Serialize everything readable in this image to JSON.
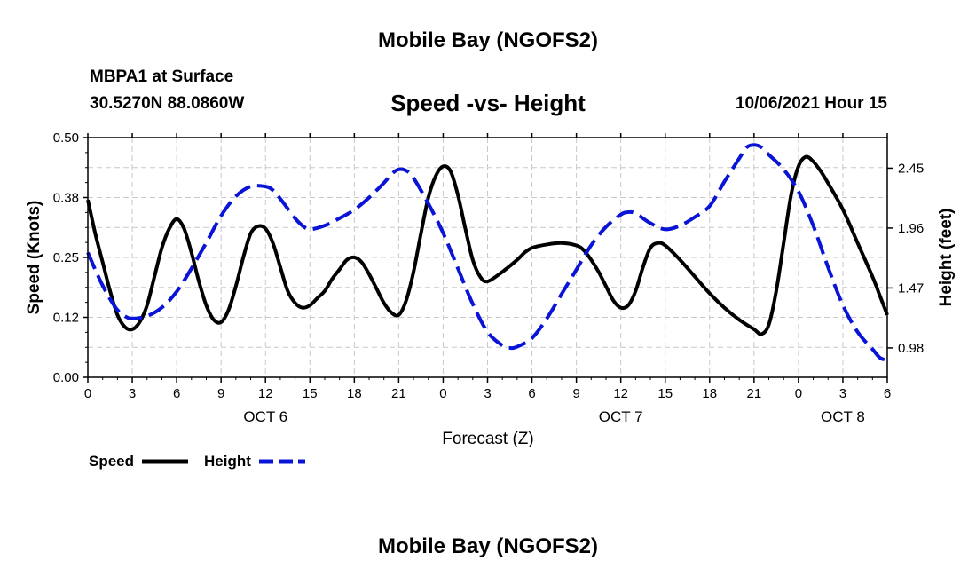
{
  "header": {
    "title": "Mobile Bay (NGOFS2)",
    "station": "MBPA1 at Surface",
    "coords": "30.5270N  88.0860W",
    "subtitle": "Speed -vs- Height",
    "datetime": "10/06/2021 Hour 15"
  },
  "footer": {
    "title": "Mobile Bay (NGOFS2)"
  },
  "legend": {
    "speed_label": "Speed",
    "height_label": "Height"
  },
  "colors": {
    "speed": "#000000",
    "height": "#0a14d6",
    "grid": "#c8c8c8"
  },
  "chart_data": {
    "type": "line",
    "xlabel": "Forecast (Z)",
    "ylabel_left": "Speed (Knots)",
    "ylabel_right": "Height (feet)",
    "x_range_hours": [
      0,
      54
    ],
    "x_ticks": [
      {
        "h": 0,
        "label": "0"
      },
      {
        "h": 3,
        "label": "3"
      },
      {
        "h": 6,
        "label": "6"
      },
      {
        "h": 9,
        "label": "9"
      },
      {
        "h": 12,
        "label": "12"
      },
      {
        "h": 15,
        "label": "15"
      },
      {
        "h": 18,
        "label": "18"
      },
      {
        "h": 21,
        "label": "21"
      },
      {
        "h": 24,
        "label": "0"
      },
      {
        "h": 27,
        "label": "3"
      },
      {
        "h": 30,
        "label": "6"
      },
      {
        "h": 33,
        "label": "9"
      },
      {
        "h": 36,
        "label": "12"
      },
      {
        "h": 39,
        "label": "15"
      },
      {
        "h": 42,
        "label": "18"
      },
      {
        "h": 45,
        "label": "21"
      },
      {
        "h": 48,
        "label": "0"
      },
      {
        "h": 51,
        "label": "3"
      },
      {
        "h": 54,
        "label": "6"
      }
    ],
    "day_labels": [
      {
        "h": 12,
        "label": "OCT 6"
      },
      {
        "h": 36,
        "label": "OCT 7"
      },
      {
        "h": 51,
        "label": "OCT 8"
      }
    ],
    "left_axis": {
      "ylim": [
        0,
        0.5
      ],
      "ticks": [
        0.0,
        0.125,
        0.25,
        0.375,
        0.5
      ],
      "tick_labels": [
        "0.00",
        "0.12",
        "0.25",
        "0.38",
        "0.50"
      ],
      "minor_step": 0.0625
    },
    "right_axis": {
      "ylim": [
        0.74,
        2.7
      ],
      "ticks": [
        0.98,
        1.47,
        1.96,
        2.45
      ],
      "tick_labels": [
        "0.98",
        "1.47",
        "1.96",
        "2.45"
      ]
    },
    "series": [
      {
        "name": "Speed",
        "axis": "left",
        "color": "#000000",
        "dash": "solid",
        "points": [
          [
            0,
            0.37
          ],
          [
            0.5,
            0.3
          ],
          [
            1,
            0.24
          ],
          [
            1.5,
            0.18
          ],
          [
            2,
            0.13
          ],
          [
            2.5,
            0.105
          ],
          [
            3,
            0.1
          ],
          [
            3.5,
            0.115
          ],
          [
            4,
            0.15
          ],
          [
            4.5,
            0.21
          ],
          [
            5,
            0.27
          ],
          [
            5.5,
            0.31
          ],
          [
            6,
            0.33
          ],
          [
            6.5,
            0.31
          ],
          [
            7,
            0.26
          ],
          [
            7.5,
            0.2
          ],
          [
            8,
            0.15
          ],
          [
            8.5,
            0.12
          ],
          [
            9,
            0.115
          ],
          [
            9.5,
            0.14
          ],
          [
            10,
            0.19
          ],
          [
            10.5,
            0.25
          ],
          [
            11,
            0.3
          ],
          [
            11.5,
            0.315
          ],
          [
            12,
            0.31
          ],
          [
            12.5,
            0.28
          ],
          [
            13,
            0.23
          ],
          [
            13.5,
            0.18
          ],
          [
            14,
            0.155
          ],
          [
            14.5,
            0.145
          ],
          [
            15,
            0.15
          ],
          [
            15.5,
            0.165
          ],
          [
            16,
            0.18
          ],
          [
            16.5,
            0.205
          ],
          [
            17,
            0.225
          ],
          [
            17.5,
            0.245
          ],
          [
            18,
            0.25
          ],
          [
            18.5,
            0.24
          ],
          [
            19,
            0.215
          ],
          [
            19.5,
            0.185
          ],
          [
            20,
            0.155
          ],
          [
            20.5,
            0.135
          ],
          [
            21,
            0.13
          ],
          [
            21.5,
            0.16
          ],
          [
            22,
            0.22
          ],
          [
            22.5,
            0.3
          ],
          [
            23,
            0.375
          ],
          [
            23.5,
            0.42
          ],
          [
            24,
            0.44
          ],
          [
            24.5,
            0.43
          ],
          [
            25,
            0.38
          ],
          [
            25.5,
            0.31
          ],
          [
            26,
            0.245
          ],
          [
            26.5,
            0.21
          ],
          [
            27,
            0.2
          ],
          [
            28,
            0.22
          ],
          [
            29,
            0.245
          ],
          [
            29.5,
            0.26
          ],
          [
            30,
            0.27
          ],
          [
            31,
            0.277
          ],
          [
            32,
            0.28
          ],
          [
            33,
            0.275
          ],
          [
            33.5,
            0.265
          ],
          [
            34,
            0.245
          ],
          [
            34.5,
            0.22
          ],
          [
            35,
            0.19
          ],
          [
            35.5,
            0.16
          ],
          [
            36,
            0.145
          ],
          [
            36.5,
            0.15
          ],
          [
            37,
            0.18
          ],
          [
            37.5,
            0.23
          ],
          [
            38,
            0.27
          ],
          [
            38.5,
            0.28
          ],
          [
            39,
            0.275
          ],
          [
            40,
            0.245
          ],
          [
            41,
            0.21
          ],
          [
            42,
            0.175
          ],
          [
            43,
            0.145
          ],
          [
            44,
            0.12
          ],
          [
            45,
            0.1
          ],
          [
            45.5,
            0.09
          ],
          [
            46,
            0.11
          ],
          [
            46.5,
            0.18
          ],
          [
            47,
            0.28
          ],
          [
            47.5,
            0.38
          ],
          [
            48,
            0.44
          ],
          [
            48.5,
            0.46
          ],
          [
            49,
            0.45
          ],
          [
            49.5,
            0.43
          ],
          [
            50,
            0.405
          ],
          [
            51,
            0.35
          ],
          [
            52,
            0.28
          ],
          [
            53,
            0.21
          ],
          [
            53.5,
            0.17
          ],
          [
            54,
            0.13
          ]
        ]
      },
      {
        "name": "Height",
        "axis": "right",
        "color": "#0a14d6",
        "dash": "dashed",
        "points": [
          [
            0,
            1.76
          ],
          [
            0.5,
            1.62
          ],
          [
            1,
            1.49
          ],
          [
            1.5,
            1.38
          ],
          [
            2,
            1.29
          ],
          [
            2.5,
            1.24
          ],
          [
            3,
            1.22
          ],
          [
            4,
            1.24
          ],
          [
            5,
            1.31
          ],
          [
            6,
            1.44
          ],
          [
            7,
            1.63
          ],
          [
            8,
            1.84
          ],
          [
            9,
            2.06
          ],
          [
            10,
            2.22
          ],
          [
            11,
            2.3
          ],
          [
            12,
            2.3
          ],
          [
            12.5,
            2.27
          ],
          [
            13,
            2.2
          ],
          [
            14,
            2.04
          ],
          [
            14.5,
            1.98
          ],
          [
            15,
            1.95
          ],
          [
            16,
            1.98
          ],
          [
            17,
            2.04
          ],
          [
            18,
            2.11
          ],
          [
            19,
            2.21
          ],
          [
            20,
            2.33
          ],
          [
            20.5,
            2.4
          ],
          [
            21,
            2.44
          ],
          [
            21.5,
            2.43
          ],
          [
            22,
            2.37
          ],
          [
            23,
            2.16
          ],
          [
            24,
            1.92
          ],
          [
            25,
            1.63
          ],
          [
            26,
            1.34
          ],
          [
            27,
            1.11
          ],
          [
            28,
            1.0
          ],
          [
            28.5,
            0.98
          ],
          [
            29,
            0.99
          ],
          [
            30,
            1.06
          ],
          [
            31,
            1.22
          ],
          [
            32,
            1.42
          ],
          [
            33,
            1.62
          ],
          [
            34,
            1.82
          ],
          [
            35,
            1.97
          ],
          [
            36,
            2.07
          ],
          [
            36.5,
            2.09
          ],
          [
            37,
            2.08
          ],
          [
            38,
            2.0
          ],
          [
            39,
            1.95
          ],
          [
            40,
            1.98
          ],
          [
            41,
            2.05
          ],
          [
            42,
            2.14
          ],
          [
            43,
            2.34
          ],
          [
            44,
            2.53
          ],
          [
            44.5,
            2.62
          ],
          [
            45,
            2.64
          ],
          [
            45.5,
            2.62
          ],
          [
            46,
            2.56
          ],
          [
            47,
            2.44
          ],
          [
            48,
            2.26
          ],
          [
            49,
            1.98
          ],
          [
            50,
            1.64
          ],
          [
            51,
            1.33
          ],
          [
            52,
            1.11
          ],
          [
            53,
            0.97
          ],
          [
            53.5,
            0.9
          ],
          [
            54,
            0.88
          ]
        ]
      }
    ],
    "grid": true
  }
}
